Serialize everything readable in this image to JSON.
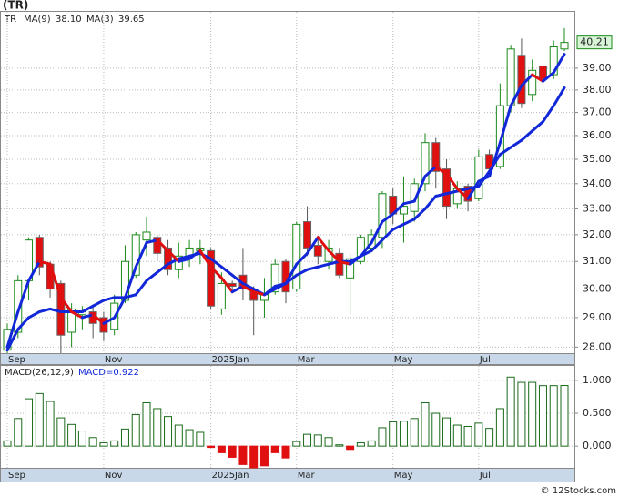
{
  "header": {
    "title": "(TR)"
  },
  "footer": "© 12Stocks.com",
  "chart_data": [
    {
      "type": "candlestick",
      "symbol": "TR",
      "categories": [
        "Sep",
        null,
        null,
        null,
        null,
        null,
        null,
        null,
        null,
        "Nov",
        null,
        null,
        null,
        null,
        null,
        null,
        null,
        null,
        null,
        "2025Jan",
        null,
        null,
        null,
        null,
        null,
        null,
        null,
        "Mar",
        null,
        null,
        null,
        null,
        null,
        null,
        null,
        null,
        "May",
        null,
        null,
        null,
        null,
        null,
        null,
        null,
        "Jul",
        null,
        null,
        null,
        null,
        null,
        null,
        null,
        null
      ],
      "open": [
        27.9,
        28.5,
        30.3,
        31.9,
        30.9,
        30.2,
        28.5,
        29.1,
        29.2,
        29.0,
        28.6,
        29.6,
        30.5,
        31.8,
        31.9,
        31.5,
        30.7,
        31.2,
        31.4,
        31.4,
        29.3,
        30.2,
        30.5,
        29.9,
        29.6,
        29.9,
        31.0,
        30.0,
        32.5,
        31.6,
        31.0,
        31.3,
        30.4,
        31.0,
        31.5,
        31.9,
        33.5,
        32.8,
        32.9,
        34.0,
        35.7,
        34.6,
        33.2,
        33.9,
        33.4,
        35.2,
        34.7,
        37.3,
        39.6,
        37.8,
        39.1,
        38.7,
        39.9
      ],
      "high": [
        28.8,
        30.5,
        31.9,
        32.0,
        31.0,
        30.3,
        29.5,
        29.4,
        29.4,
        29.2,
        29.8,
        31.6,
        32.1,
        32.7,
        32.0,
        31.8,
        31.7,
        31.8,
        31.8,
        31.5,
        30.6,
        30.3,
        31.5,
        30.1,
        30.4,
        31.1,
        31.1,
        32.5,
        33.1,
        31.8,
        31.8,
        31.5,
        31.3,
        32.0,
        32.2,
        33.7,
        33.8,
        34.3,
        34.2,
        36.1,
        35.9,
        35.0,
        34.1,
        34.0,
        35.4,
        35.4,
        38.3,
        40.1,
        40.4,
        39.4,
        39.3,
        40.3,
        40.9
      ],
      "low": [
        27.8,
        28.3,
        29.6,
        30.5,
        29.7,
        27.8,
        28.0,
        28.6,
        28.3,
        28.2,
        28.4,
        29.5,
        30.4,
        31.2,
        31.0,
        30.5,
        30.4,
        30.8,
        30.9,
        29.3,
        29.1,
        29.9,
        29.6,
        28.4,
        29.0,
        29.8,
        29.5,
        29.9,
        31.2,
        30.9,
        30.7,
        30.4,
        29.1,
        30.9,
        31.4,
        31.5,
        32.4,
        31.7,
        32.5,
        33.7,
        33.8,
        32.6,
        33.0,
        32.9,
        33.3,
        34.3,
        34.6,
        37.0,
        37.2,
        37.5,
        38.2,
        38.5,
        39.8
      ],
      "close": [
        28.6,
        30.3,
        31.8,
        30.8,
        30.0,
        28.4,
        29.3,
        29.2,
        28.8,
        28.5,
        29.5,
        31.0,
        32.0,
        32.1,
        31.3,
        30.7,
        31.2,
        31.5,
        31.5,
        29.4,
        30.2,
        30.1,
        30.0,
        29.6,
        29.8,
        30.9,
        29.9,
        32.4,
        31.5,
        31.2,
        31.5,
        30.5,
        31.1,
        31.9,
        32.0,
        33.6,
        32.8,
        33.1,
        34.0,
        35.7,
        34.5,
        33.1,
        33.8,
        33.3,
        35.1,
        34.6,
        37.3,
        39.9,
        37.4,
        38.9,
        38.5,
        40.0,
        40.21
      ],
      "up_color": "#1a8a1a",
      "down_color": "#e01010",
      "series": [
        {
          "name": "MA(9)",
          "legend_value": "38.10",
          "color": "#1228d8",
          "values": [
            27.9,
            28.6,
            29.0,
            29.2,
            29.3,
            29.2,
            29.2,
            29.2,
            29.4,
            29.6,
            29.7,
            29.7,
            29.8,
            30.3,
            30.6,
            30.9,
            31.1,
            31.2,
            31.3,
            31.1,
            30.8,
            30.5,
            30.2,
            30.0,
            29.8,
            30.0,
            30.2,
            30.5,
            30.7,
            30.8,
            30.9,
            31.0,
            31.0,
            31.2,
            31.4,
            31.8,
            32.2,
            32.4,
            32.6,
            33.0,
            33.5,
            33.6,
            33.7,
            33.8,
            33.9,
            34.5,
            35.2,
            35.5,
            35.8,
            36.2,
            36.6,
            37.3,
            38.1
          ]
        },
        {
          "name": "MA(3)",
          "legend_value": "39.65",
          "color": "#1228d8",
          "color_down": "#e01010",
          "values": [
            28.0,
            29.2,
            30.3,
            31.0,
            30.9,
            29.7,
            29.2,
            29.0,
            29.1,
            28.8,
            29.0,
            29.7,
            30.8,
            31.7,
            31.8,
            31.4,
            31.0,
            31.1,
            31.4,
            30.8,
            30.4,
            29.9,
            30.1,
            29.9,
            29.8,
            30.1,
            30.2,
            30.9,
            31.3,
            31.9,
            31.4,
            31.0,
            30.9,
            31.2,
            31.7,
            32.5,
            32.8,
            33.2,
            33.3,
            34.3,
            34.7,
            34.4,
            33.8,
            33.4,
            34.1,
            34.3,
            35.7,
            37.3,
            38.2,
            38.7,
            38.4,
            38.8,
            39.65
          ]
        }
      ],
      "ylim": [
        27.8,
        41.7
      ],
      "log_scale": true,
      "grid": true,
      "yticks": [
        {
          "value": 28,
          "label": "28.00"
        },
        {
          "value": 29,
          "label": "29.00"
        },
        {
          "value": 30,
          "label": "30.00"
        },
        {
          "value": 31,
          "label": "31.00"
        },
        {
          "value": 32,
          "label": "32.00"
        },
        {
          "value": 33,
          "label": "33.00"
        },
        {
          "value": 34,
          "label": "34.00"
        },
        {
          "value": 35,
          "label": "35.00"
        },
        {
          "value": 36,
          "label": "36.00"
        },
        {
          "value": 37,
          "label": "37.00"
        },
        {
          "value": 38,
          "label": "38.00"
        },
        {
          "value": 39,
          "label": "39.00"
        }
      ]
    },
    {
      "type": "bar",
      "title": "MACD(26,12,9)",
      "value_text": "MACD=0.922",
      "pos_color": "#1a6a1a",
      "neg_color": "#e01010",
      "values": [
        0.08,
        0.42,
        0.72,
        0.8,
        0.68,
        0.43,
        0.33,
        0.23,
        0.13,
        0.05,
        0.08,
        0.26,
        0.48,
        0.66,
        0.57,
        0.45,
        0.32,
        0.25,
        0.21,
        -0.02,
        -0.1,
        -0.17,
        -0.28,
        -0.33,
        -0.3,
        -0.1,
        -0.18,
        0.07,
        0.18,
        0.17,
        0.13,
        0.02,
        -0.05,
        0.05,
        0.08,
        0.28,
        0.37,
        0.38,
        0.42,
        0.66,
        0.5,
        0.43,
        0.32,
        0.3,
        0.35,
        0.27,
        0.57,
        1.05,
        0.97,
        0.97,
        0.92,
        0.92,
        0.922
      ],
      "ylim": [
        -0.33,
        1.22
      ],
      "grid": true,
      "yticks": [
        {
          "value": 0,
          "label": "0.000"
        },
        {
          "value": 0.5,
          "label": "0.500"
        },
        {
          "value": 1,
          "label": "1.000"
        }
      ]
    }
  ]
}
